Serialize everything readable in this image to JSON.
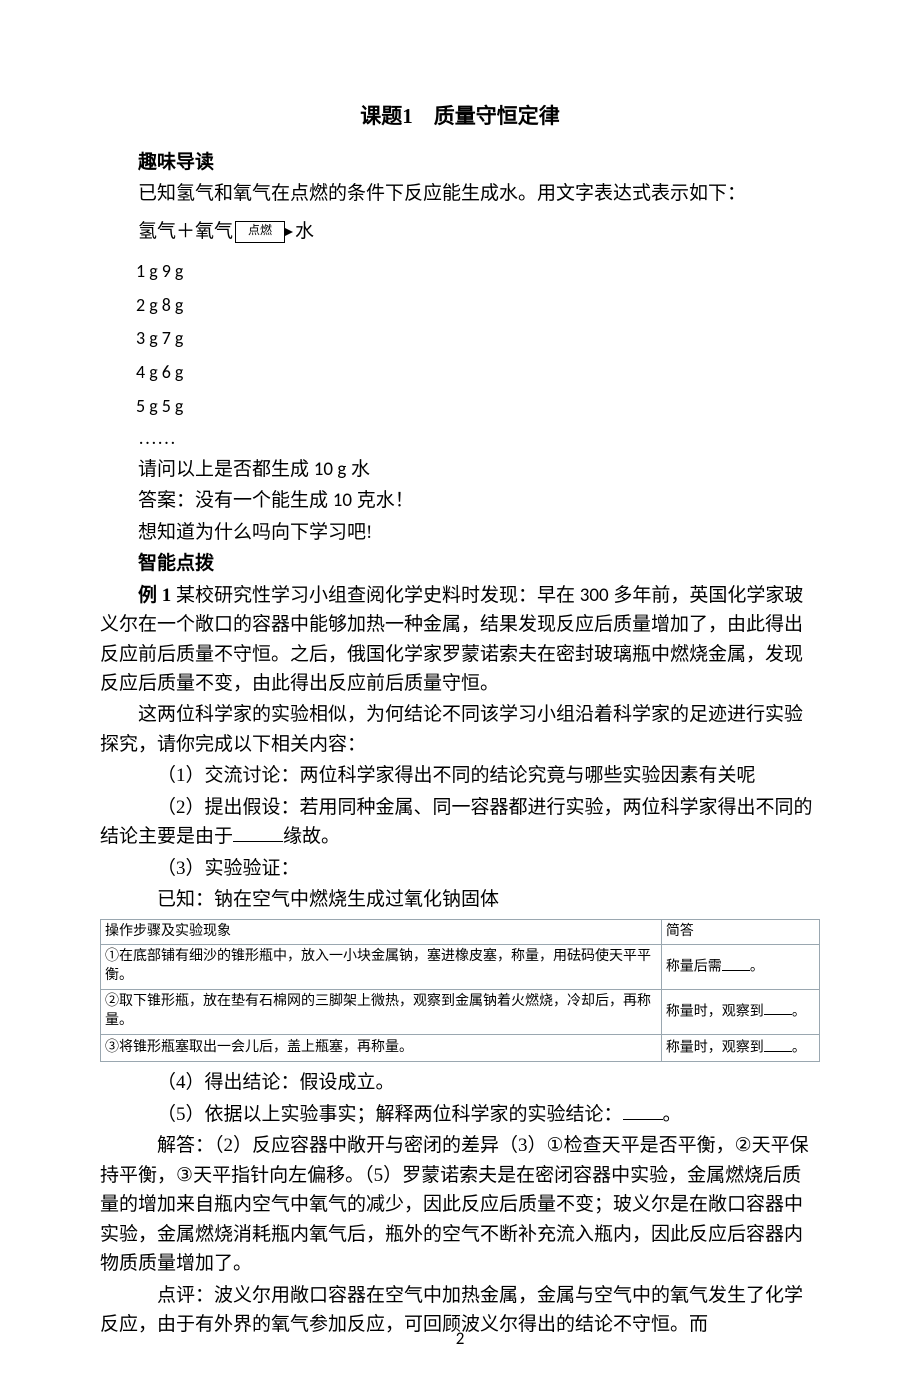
{
  "title": "课题1　质量守恒定律",
  "sec1": "趣味导读",
  "p1": "已知氢气和氧气在点燃的条件下反应能生成水。用文字表达式表示如下：",
  "eq": {
    "lhs": "氢气＋氧气",
    "label": "点燃",
    "rhs": "水"
  },
  "mass_rows": [
    "1 g    9 g",
    "2 g    8 g",
    "3 g    7 g",
    "4 g    6 g",
    "5 g    5 g"
  ],
  "dots": "……",
  "q1": "请问以上是否都生成 10 g 水",
  "q1_10": "10 g",
  "ans1a": "答案：没有一个能生成 ",
  "ans1b": " 克水！",
  "ans1_10": "10",
  "p2": "想知道为什么吗向下学习吧!",
  "sec2": "智能点拨",
  "ex_label": "例 1 ",
  "ex_num": "300",
  "ex1a": "某校研究性学习小组查阅化学史料时发现：早在 ",
  "ex1b": " 多年前，英国化学家玻义尔在一个敞口的容器中能够加热一种金属，结果发现反应后质量增加了，由此得出反应前后质量不守恒。之后，俄国化学家罗蒙诺索夫在密封玻璃瓶中燃烧金属，发现反应后质量不变，由此得出反应前后质量守恒。",
  "p3": "这两位科学家的实验相似，为何结论不同该学习小组沿着科学家的足迹进行实验探究，请你完成以下相关内容：",
  "i1": "（1）交流讨论：两位科学家得出不同的结论究竟与哪些实验因素有关呢",
  "i2a": "（2）提出假设：若用同种金属、同一容器都进行实验，两位科学家得出不同的结论主要是由于",
  "i2b": "缘故。",
  "i3": "（3）实验验证：",
  "i3k": "已知：钠在空气中燃烧生成过氧化钠固体",
  "table": {
    "h1": "操作步骤及实验现象",
    "h2": "简答",
    "r1c1": "①在底部铺有细沙的锥形瓶中，放入一小块金属钠，塞进橡皮塞，称量，用砝码使天平平衡。",
    "r1c2a": "称量后需",
    "r1c2b": "。",
    "r2c1": "②取下锥形瓶，放在垫有石棉网的三脚架上微热，观察到金属钠着火燃烧，冷却后，再称量。",
    "r2c2a": "称量时，观察到",
    "r2c2b": "。",
    "r3c1": "③将锥形瓶塞取出一会儿后，盖上瓶塞，再称量。",
    "r3c2a": "称量时，观察到",
    "r3c2b": "。"
  },
  "i4": "（4）得出结论：假设成立。",
  "i5a": "（5）依据以上实验事实；解释两位科学家的实验结论：",
  "i5b": "。",
  "sol": "解答：（2）反应容器中敞开与密闭的差异（3）①检查天平是否平衡，②天平保持平衡，③天平指针向左偏移。（5）罗蒙诺索夫是在密闭容器中实验，金属燃烧后质量的增加来自瓶内空气中氧气的减少，因此反应后质量不变；玻义尔是在敞口容器中实验，金属燃烧消耗瓶内氧气后，瓶外的空气不断补充流入瓶内，因此反应后容器内物质质量增加了。",
  "dp": "点评：波义尔用敞口容器在空气中加热金属，金属与空气中的氧气发生了化学反应，由于有外界的氧气参加反应，可回顾波义尔得出的结论不守恒。而",
  "pagenum": "2",
  "colors": {
    "text": "#000000",
    "bg": "#ffffff",
    "table_border": "#9aa7b0"
  }
}
